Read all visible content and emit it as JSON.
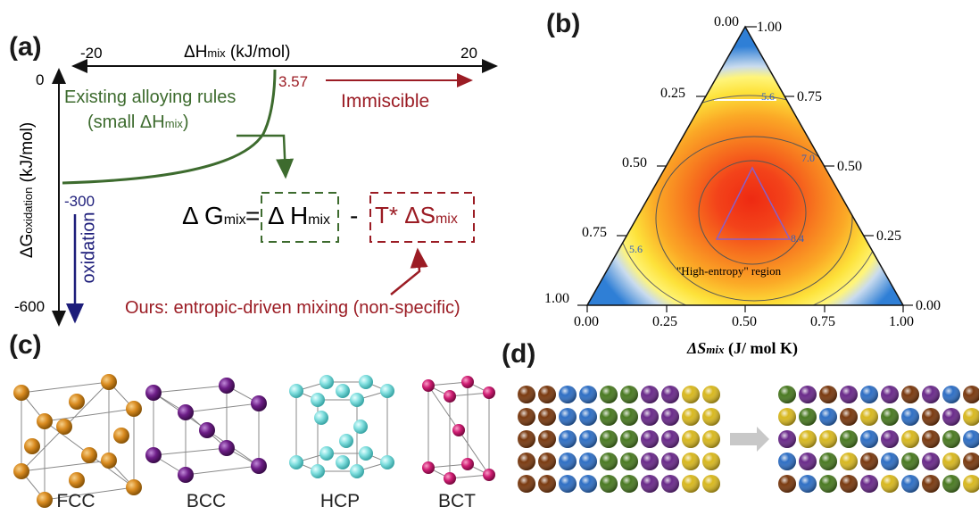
{
  "panel_a": {
    "label": "(a)",
    "x_axis": {
      "title_main": "ΔH",
      "title_sub": "mix",
      "title_unit": " (kJ/mol)",
      "tick_left": "-20",
      "tick_right": "20",
      "tick_zero": "0"
    },
    "y_axis": {
      "title_main": "ΔG",
      "title_sub": "oxidation",
      "title_unit": " (kJ/mol)",
      "tick_mid": "-300",
      "tick_bottom": "-600"
    },
    "threshold": "3.57",
    "immiscible": "Immiscible",
    "existing_rules_line1": "Existing alloying rules",
    "existing_rules_line2": "(small ΔH",
    "existing_rules_sub": "mix",
    "existing_rules_end": ")",
    "oxidation": "oxidation",
    "equation": {
      "lhs_main": "Δ G",
      "lhs_sub": "mix",
      "equals": "=",
      "term1_main": "Δ H",
      "term1_sub": "mix",
      "minus": "-",
      "term2_main": "T*  ΔS",
      "term2_sub": "mix"
    },
    "ours": "Ours: entropic-driven mixing (non-specific)",
    "colors": {
      "green": "#3d6b2e",
      "red": "#9b1c24",
      "navy": "#1d1d7a"
    }
  },
  "panel_b": {
    "label": "(b)",
    "apex": {
      "top_left": "0.00",
      "top_right": "1.00"
    },
    "left_ticks": [
      "0.25",
      "0.50",
      "0.75",
      "1.00"
    ],
    "right_ticks": [
      "0.75",
      "0.50",
      "0.25",
      "0.00"
    ],
    "bottom_ticks": [
      "0.00",
      "0.25",
      "0.50",
      "0.75",
      "1.00"
    ],
    "contours": [
      "5.6",
      "7.0",
      "8.4",
      "5.6"
    ],
    "region": "\"High-entropy\" region",
    "xlabel_main": "ΔS",
    "xlabel_sub": "mix",
    "xlabel_unit": " (J/ mol K)"
  },
  "panel_c": {
    "label": "(c)",
    "structures": [
      "FCC",
      "BCC",
      "HCP",
      "BCT"
    ]
  },
  "panel_d": {
    "label": "(d)",
    "colors": [
      "#7a3a10",
      "#7a3a10",
      "#2f6fc4",
      "#2f6fc4",
      "#4a7a22",
      "#4a7a22",
      "#6a2a8a",
      "#6a2a8a",
      "#d8b820",
      "#d8b820"
    ],
    "mixed_rows": [
      [
        "#4a7a22",
        "#6a2a8a",
        "#7a3a10",
        "#6a2a8a",
        "#2f6fc4",
        "#6a2a8a",
        "#7a3a10",
        "#6a2a8a",
        "#2f6fc4",
        "#7a3a10"
      ],
      [
        "#d8b820",
        "#4a7a22",
        "#2f6fc4",
        "#7a3a10",
        "#d8b820",
        "#4a7a22",
        "#2f6fc4",
        "#7a3a10",
        "#6a2a8a",
        "#d8b820"
      ],
      [
        "#6a2a8a",
        "#d8b820",
        "#d8b820",
        "#4a7a22",
        "#2f6fc4",
        "#6a2a8a",
        "#d8b820",
        "#7a3a10",
        "#4a7a22",
        "#2f6fc4"
      ],
      [
        "#2f6fc4",
        "#6a2a8a",
        "#4a7a22",
        "#d8b820",
        "#7a3a10",
        "#2f6fc4",
        "#4a7a22",
        "#6a2a8a",
        "#d8b820",
        "#7a3a10"
      ],
      [
        "#7a3a10",
        "#2f6fc4",
        "#4a7a22",
        "#7a3a10",
        "#6a2a8a",
        "#d8b820",
        "#2f6fc4",
        "#7a3a10",
        "#4a7a22",
        "#d8b820"
      ]
    ]
  }
}
